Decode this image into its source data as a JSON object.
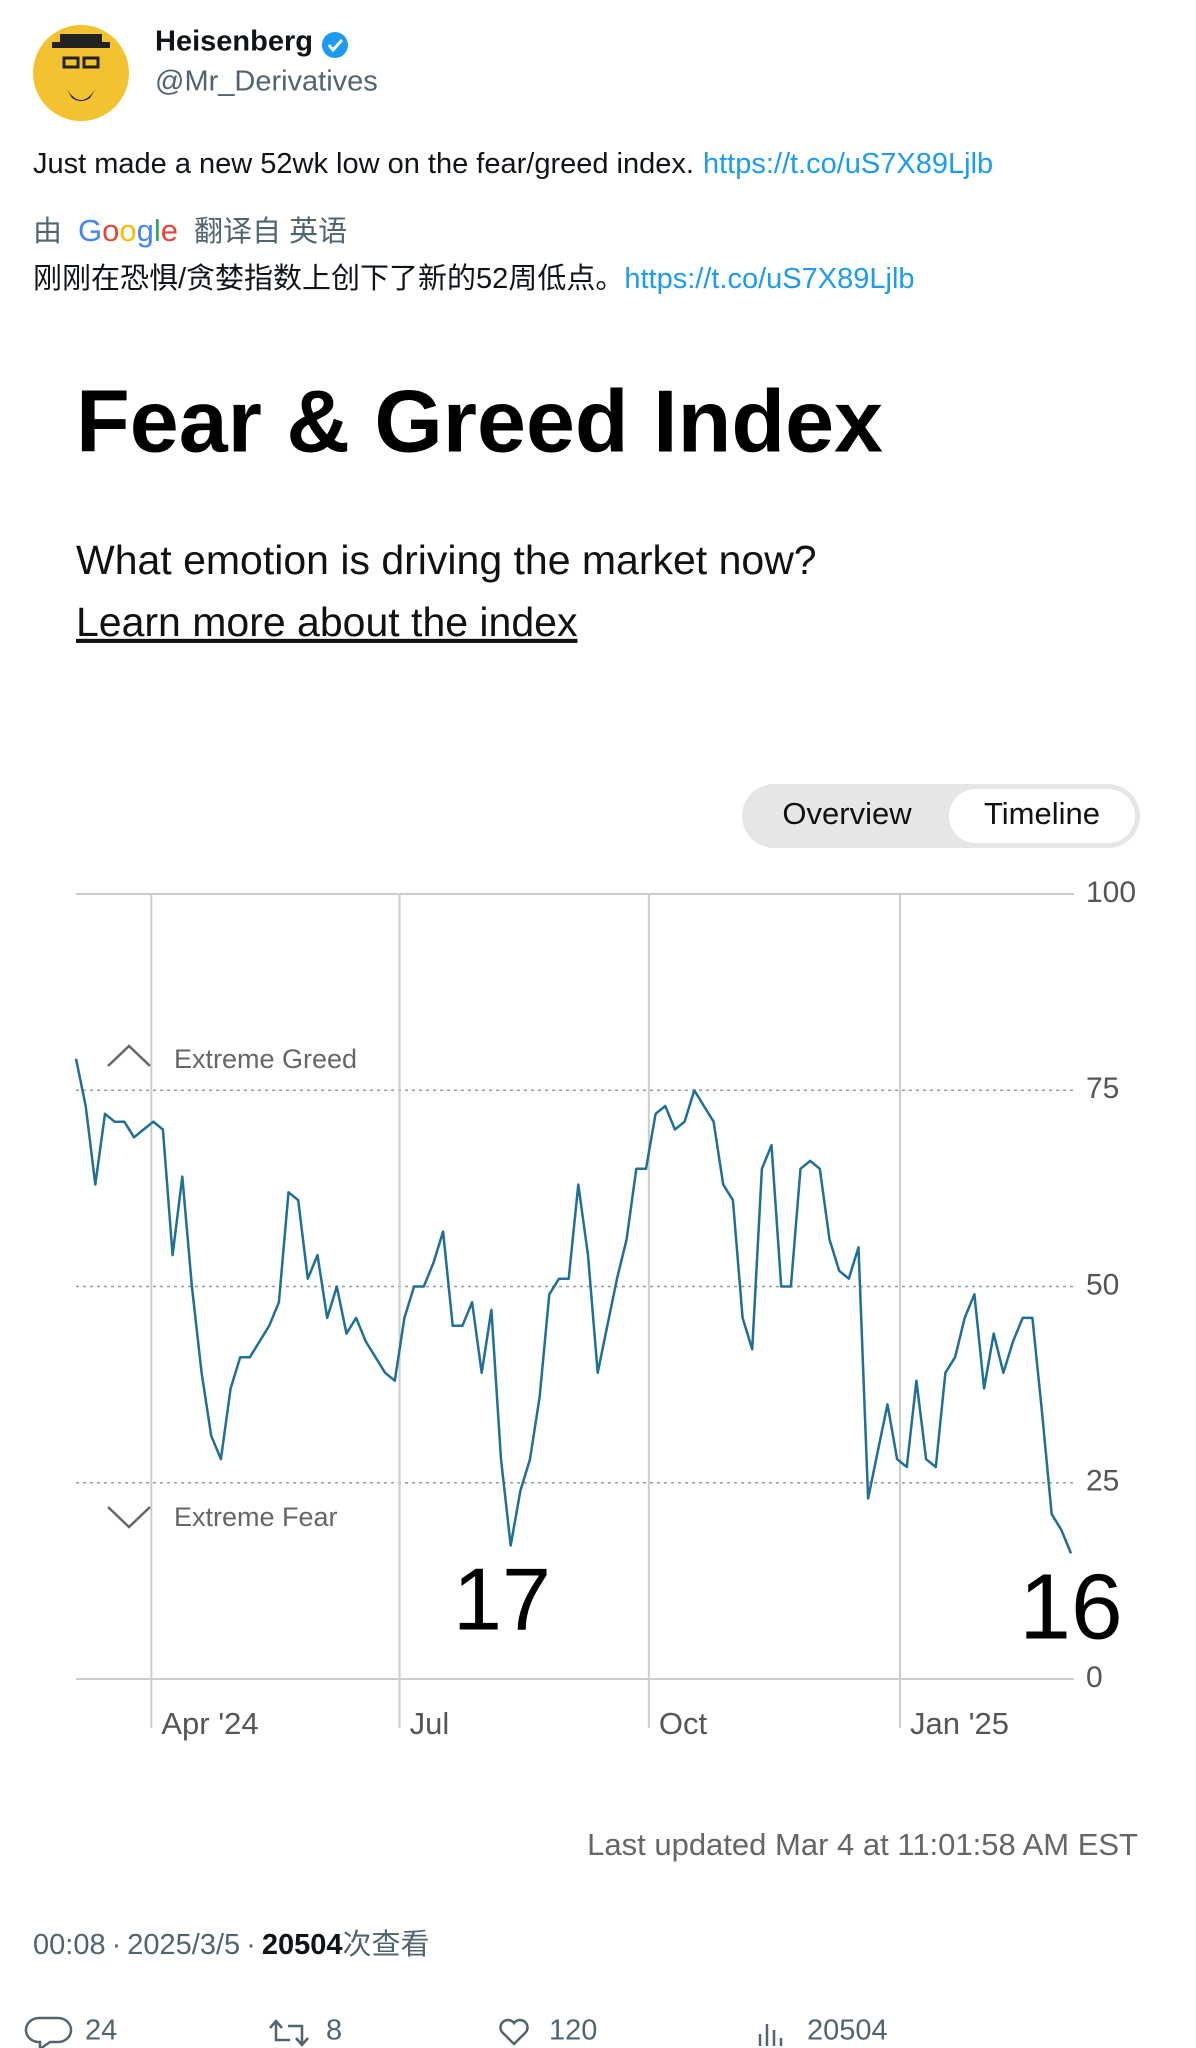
{
  "author": {
    "name": "Heisenberg",
    "handle": "@Mr_Derivatives"
  },
  "tweet": {
    "text": "Just made a new 52wk low on the fear/greed index.",
    "link": "https://t.co/uS7X89Ljlb"
  },
  "translation": {
    "prefix": "由",
    "brand": "Google",
    "suffix": "翻译自 英语",
    "text": "刚刚在恐惧/贪婪指数上创下了新的52周低点。",
    "link": "https://t.co/uS7X89Ljlb"
  },
  "chart_data": {
    "type": "line",
    "title": "Fear & Greed Index",
    "subtitle": "What emotion is driving the market now?",
    "link_text": "Learn more about the index",
    "toggle": [
      "Overview",
      "Timeline"
    ],
    "zones": {
      "greed": "Extreme Greed",
      "fear": "Extreme Fear"
    },
    "low_label": 17,
    "current_label": 16,
    "last_updated": "Last updated Mar 4 at 11:01:58 AM EST",
    "color": "#1f6f97",
    "values": [
      79,
      73,
      63,
      72,
      71,
      71,
      69,
      70,
      71,
      70,
      54,
      64,
      50,
      39,
      31,
      28,
      37,
      41,
      41,
      43,
      45,
      48,
      62,
      61,
      51,
      54,
      46,
      50,
      44,
      46,
      43,
      41,
      39,
      38,
      46,
      50,
      50,
      53,
      57,
      45,
      45,
      48,
      39,
      47,
      28,
      17,
      24,
      28,
      36,
      49,
      51,
      51,
      63,
      54,
      39,
      45,
      51,
      56,
      65,
      65,
      72,
      73,
      70,
      71,
      75,
      73,
      71,
      63,
      61,
      46,
      42,
      65,
      68,
      50,
      50,
      65,
      66,
      65,
      56,
      52,
      51,
      55,
      23,
      29,
      35,
      28,
      27,
      38,
      28,
      27,
      39,
      41,
      46,
      49,
      37,
      44,
      39,
      43,
      46,
      46,
      34,
      21,
      19,
      16
    ],
    "xlim": [
      0,
      103
    ],
    "xticks": [
      {
        "value": 7.8,
        "label": "Apr '24"
      },
      {
        "value": 33.5,
        "label": "Jul"
      },
      {
        "value": 59.3,
        "label": "Oct"
      },
      {
        "value": 85.3,
        "label": "Jan '25"
      }
    ],
    "ylim": [
      0,
      100
    ],
    "yticks": [
      0,
      25,
      50,
      75,
      100
    ],
    "grid": true
  },
  "meta": {
    "time": "00:08",
    "separator": "·",
    "date": "2025/3/5",
    "views": "20504",
    "views_suffix": "次查看"
  },
  "actions": {
    "replies": 24,
    "retweets": 8,
    "likes": 120,
    "views": 20504
  }
}
